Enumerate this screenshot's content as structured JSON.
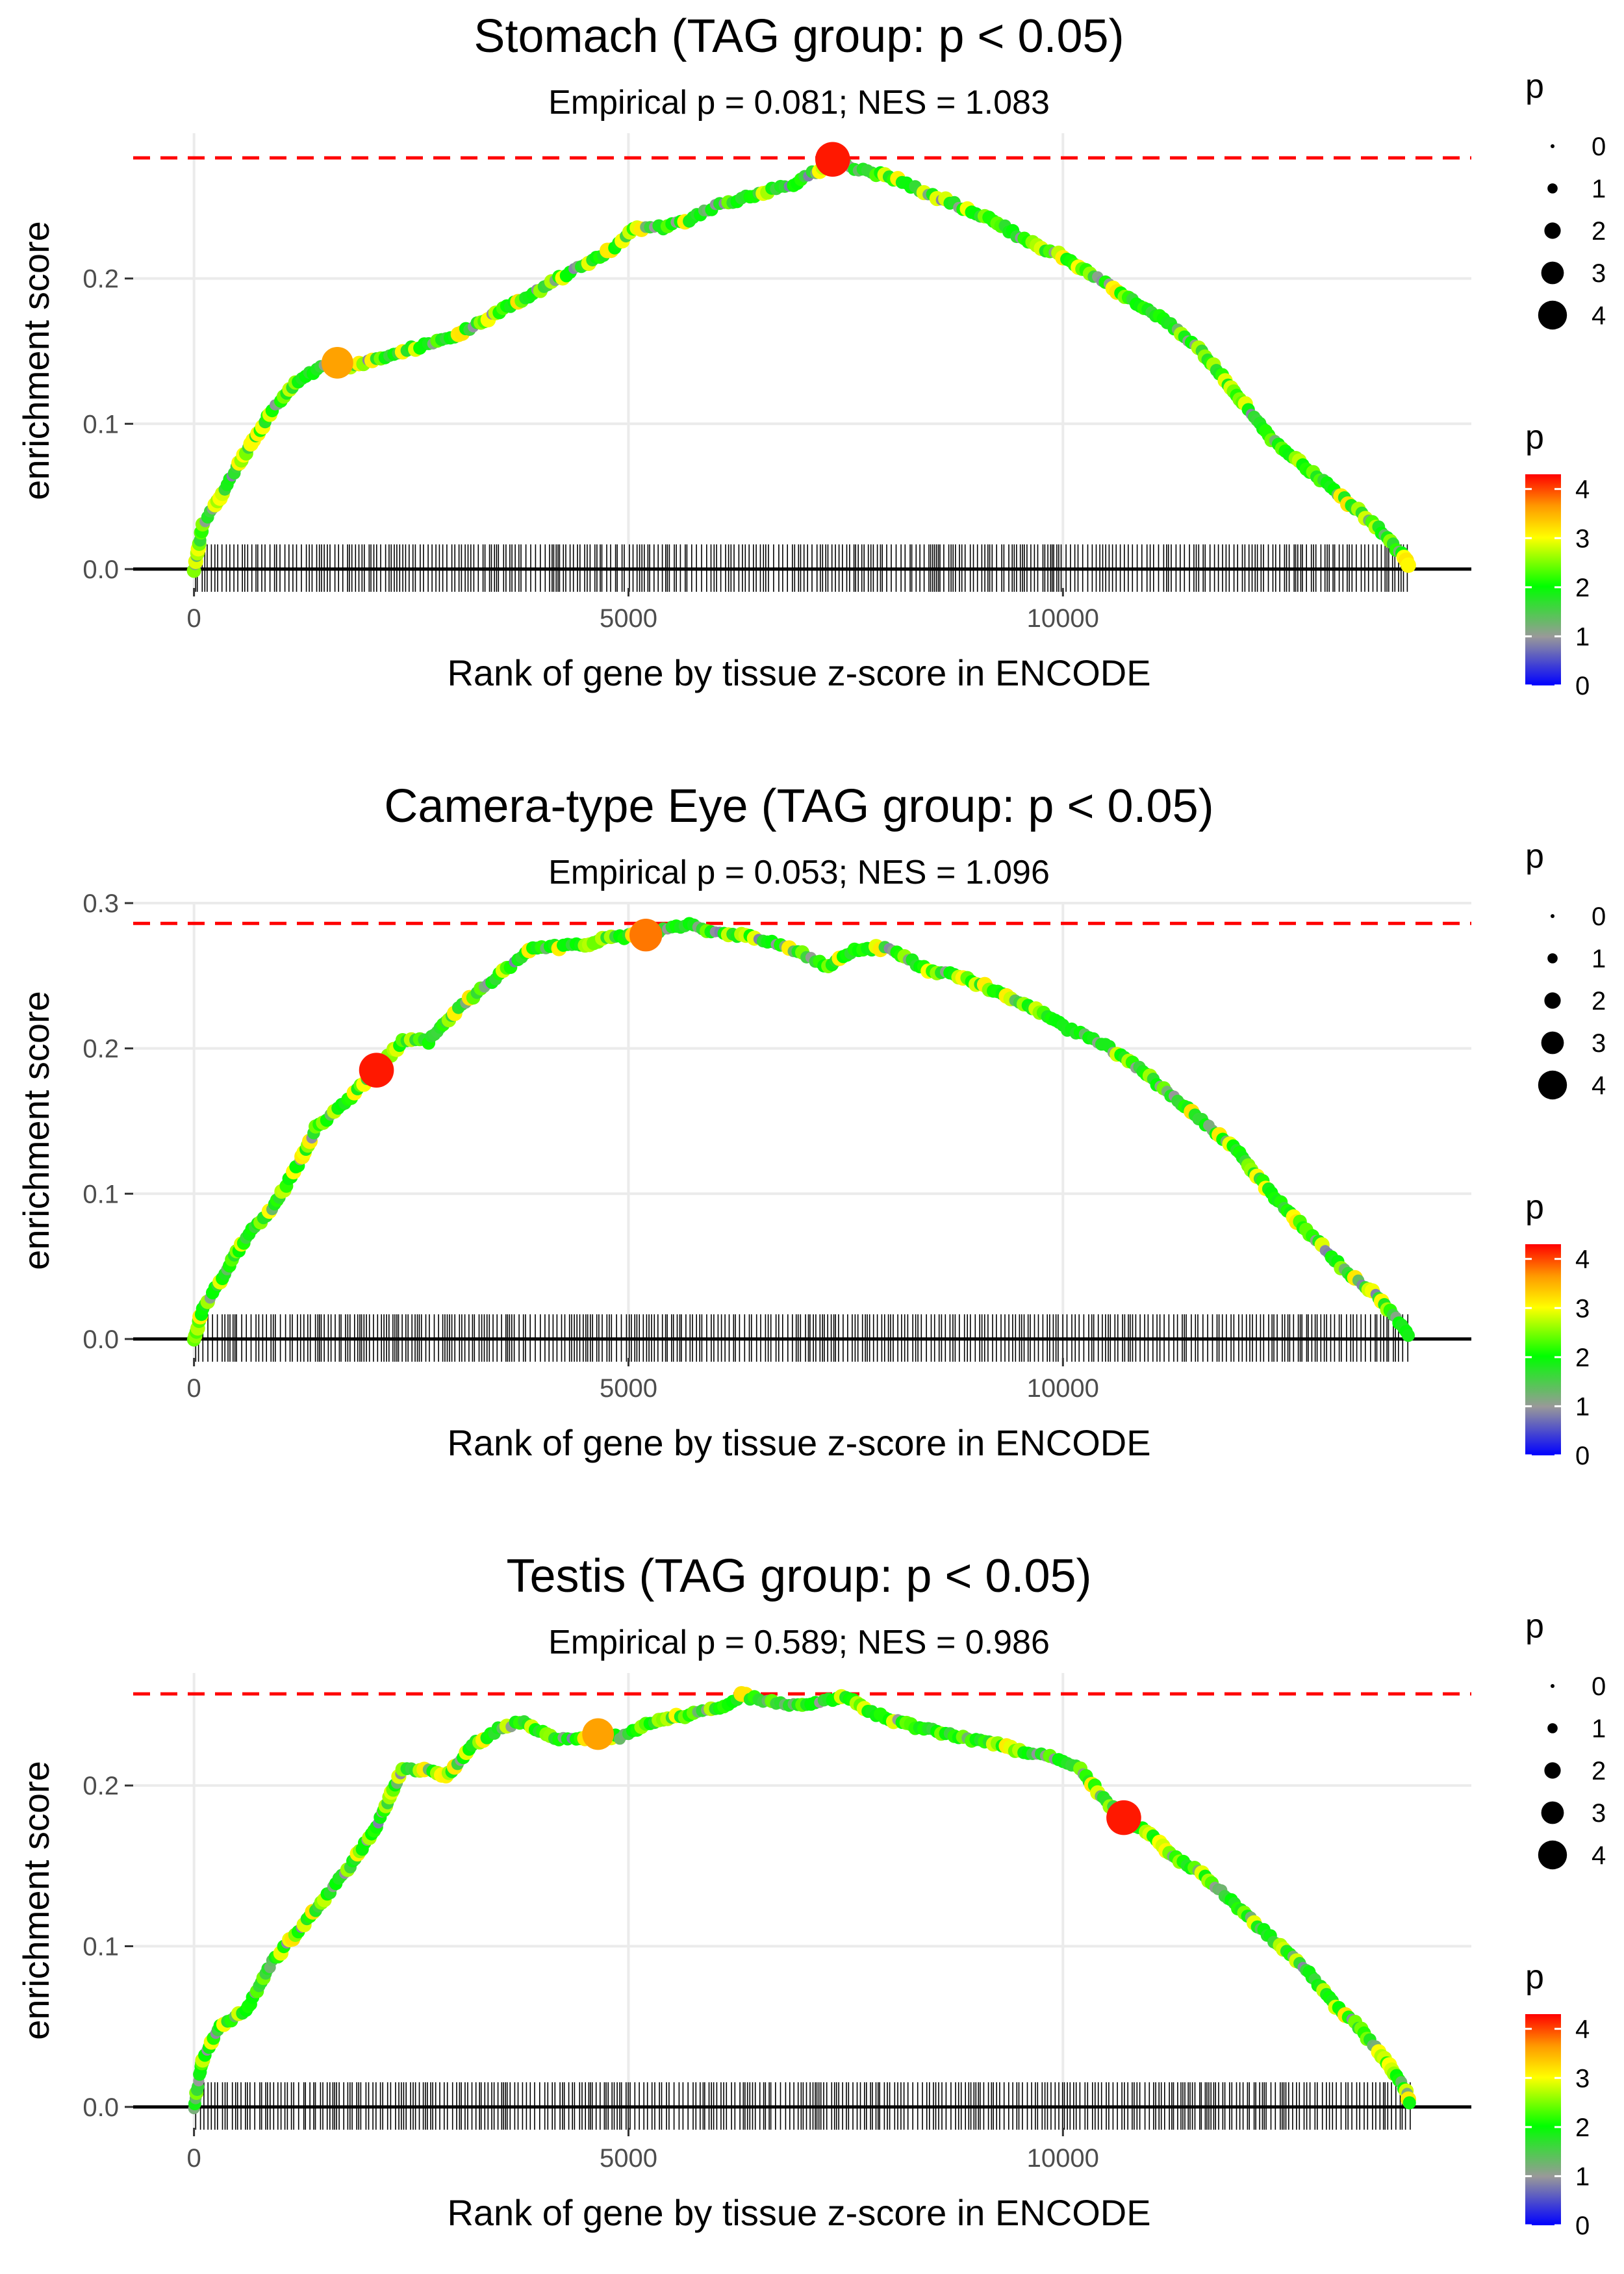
{
  "chart_data": [
    {
      "type": "line",
      "title": "Stomach (TAG group: p < 0.05)",
      "subtitle": "Empirical p = 0.081; NES = 1.083",
      "xlabel": "Rank of gene by tissue z-score in ENCODE",
      "ylabel": "enrichment score",
      "xlim": [
        -700,
        14700
      ],
      "ylim": [
        -0.013,
        0.3
      ],
      "xticks": [
        0,
        5000,
        10000
      ],
      "xtick_labels": [
        "0",
        "5000",
        "10000"
      ],
      "yticks": [
        0.0,
        0.1,
        0.2
      ],
      "ytick_labels": [
        "0.0",
        "0.1",
        "0.2"
      ],
      "max_es": 0.283,
      "x": [
        0,
        100,
        300,
        600,
        900,
        1200,
        1500,
        1650,
        1800,
        2100,
        2400,
        2700,
        3000,
        3300,
        3600,
        3900,
        4200,
        4500,
        4800,
        5100,
        5400,
        5700,
        6000,
        6300,
        6600,
        6900,
        7200,
        7350,
        7600,
        8000,
        8400,
        8800,
        9200,
        9600,
        10000,
        10400,
        10800,
        11200,
        11600,
        12000,
        12400,
        12800,
        13200,
        13600,
        13900,
        14000
      ],
      "y": [
        0.0,
        0.03,
        0.05,
        0.08,
        0.11,
        0.13,
        0.14,
        0.142,
        0.14,
        0.145,
        0.15,
        0.155,
        0.16,
        0.17,
        0.18,
        0.19,
        0.2,
        0.21,
        0.22,
        0.235,
        0.235,
        0.24,
        0.25,
        0.255,
        0.26,
        0.265,
        0.275,
        0.282,
        0.276,
        0.27,
        0.26,
        0.25,
        0.24,
        0.225,
        0.215,
        0.2,
        0.185,
        0.17,
        0.15,
        0.12,
        0.09,
        0.07,
        0.05,
        0.03,
        0.01,
        0.0
      ],
      "highlights": [
        {
          "x": 1650,
          "y": 0.142,
          "p": 3.6
        },
        {
          "x": 7350,
          "y": 0.282,
          "p": 4.2
        }
      ]
    },
    {
      "type": "line",
      "title": "Camera-type Eye (TAG group: p < 0.05)",
      "subtitle": "Empirical p = 0.053; NES = 1.096",
      "xlabel": "Rank of gene by tissue z-score in ENCODE",
      "ylabel": "enrichment score",
      "xlim": [
        -700,
        14700
      ],
      "ylim": [
        -0.013,
        0.3
      ],
      "xticks": [
        0,
        5000,
        10000
      ],
      "xtick_labels": [
        "0",
        "5000",
        "10000"
      ],
      "yticks": [
        0.0,
        0.1,
        0.2,
        0.3
      ],
      "ytick_labels": [
        "0.0",
        "0.1",
        "0.2",
        "0.3"
      ],
      "max_es": 0.286,
      "x": [
        0,
        100,
        300,
        600,
        900,
        1200,
        1400,
        1700,
        2100,
        2400,
        2700,
        3000,
        3300,
        3600,
        3900,
        4200,
        4500,
        4800,
        5200,
        5500,
        5700,
        6000,
        6300,
        6700,
        7000,
        7300,
        7600,
        8000,
        8400,
        8800,
        9200,
        9600,
        10000,
        10400,
        10800,
        11200,
        11600,
        12000,
        12400,
        12800,
        13200,
        13600,
        13900,
        14000
      ],
      "y": [
        0.0,
        0.02,
        0.04,
        0.07,
        0.09,
        0.12,
        0.145,
        0.16,
        0.185,
        0.205,
        0.205,
        0.225,
        0.24,
        0.255,
        0.27,
        0.27,
        0.272,
        0.276,
        0.278,
        0.283,
        0.286,
        0.28,
        0.278,
        0.272,
        0.265,
        0.256,
        0.268,
        0.27,
        0.255,
        0.25,
        0.24,
        0.23,
        0.215,
        0.205,
        0.19,
        0.17,
        0.15,
        0.13,
        0.1,
        0.075,
        0.05,
        0.03,
        0.01,
        0.0
      ],
      "highlights": [
        {
          "x": 2100,
          "y": 0.185,
          "p": 4.2
        },
        {
          "x": 5200,
          "y": 0.278,
          "p": 3.8
        }
      ]
    },
    {
      "type": "line",
      "title": "Testis (TAG group: p < 0.05)",
      "subtitle": "Empirical p = 0.589; NES = 0.986",
      "xlabel": "Rank of gene by tissue z-score in ENCODE",
      "ylabel": "enrichment score",
      "xlim": [
        -700,
        14700
      ],
      "ylim": [
        -0.013,
        0.27
      ],
      "xticks": [
        0,
        5000,
        10000
      ],
      "xtick_labels": [
        "0",
        "5000",
        "10000"
      ],
      "yticks": [
        0.0,
        0.1,
        0.2
      ],
      "ytick_labels": [
        "0.0",
        "0.1",
        "0.2"
      ],
      "max_es": 0.257,
      "x": [
        0,
        100,
        300,
        600,
        900,
        1200,
        1500,
        1800,
        2100,
        2400,
        2700,
        2900,
        3200,
        3500,
        3800,
        4100,
        4400,
        4650,
        4900,
        5200,
        5500,
        5800,
        6100,
        6300,
        6600,
        6900,
        7200,
        7500,
        7800,
        8100,
        8400,
        8700,
        9000,
        9300,
        9600,
        9900,
        10200,
        10500,
        10700,
        11000,
        11300,
        11600,
        11900,
        12200,
        12500,
        12800,
        13100,
        13400,
        13700,
        13950,
        14000
      ],
      "y": [
        0.0,
        0.03,
        0.05,
        0.06,
        0.09,
        0.11,
        0.13,
        0.15,
        0.175,
        0.21,
        0.21,
        0.205,
        0.225,
        0.235,
        0.24,
        0.23,
        0.228,
        0.232,
        0.23,
        0.238,
        0.242,
        0.245,
        0.25,
        0.256,
        0.252,
        0.25,
        0.252,
        0.255,
        0.245,
        0.24,
        0.235,
        0.232,
        0.228,
        0.225,
        0.22,
        0.217,
        0.21,
        0.19,
        0.18,
        0.17,
        0.155,
        0.145,
        0.13,
        0.115,
        0.1,
        0.085,
        0.065,
        0.05,
        0.03,
        0.01,
        0.0
      ],
      "highlights": [
        {
          "x": 4650,
          "y": 0.232,
          "p": 3.6
        },
        {
          "x": 10700,
          "y": 0.18,
          "p": 4.2
        }
      ]
    }
  ],
  "legend": {
    "size_title": "p",
    "size_labels": [
      "0",
      "1",
      "2",
      "3",
      "4"
    ],
    "size_values": [
      0,
      1,
      2,
      3,
      4
    ],
    "color_title": "p",
    "color_labels": [
      "0",
      "1",
      "2",
      "3",
      "4"
    ],
    "color_values": [
      0,
      1,
      2,
      3,
      4
    ],
    "color_range": [
      0,
      4.3
    ],
    "colors": [
      "#0000ff",
      "#999999",
      "#00ff00",
      "#ffff00",
      "#ff9900",
      "#ff0000"
    ]
  },
  "colors": {
    "max_line": "#ff0000",
    "baseline": "#000000",
    "grid": "#ebebeb",
    "rug": "#000000"
  }
}
